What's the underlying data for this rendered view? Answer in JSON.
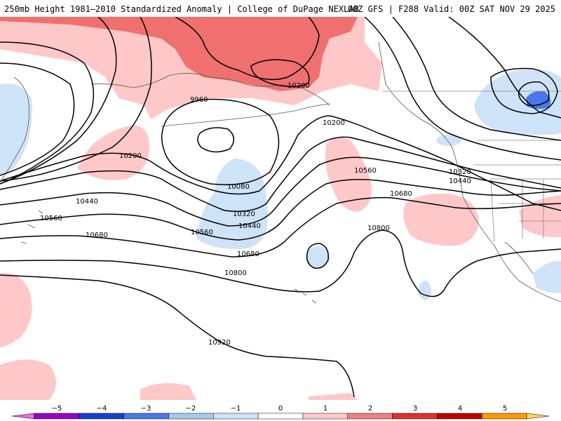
{
  "header": {
    "left": "250mb Height 1981–2010 Standardized Anomaly | College of DuPage NEXLAB",
    "right": "00Z GFS | F288 Valid: 00Z SAT NOV 29 2025"
  },
  "map": {
    "contour_labels": [
      "9960",
      "10080",
      "10200",
      "10200",
      "10200",
      "10320",
      "10320",
      "10440",
      "10440",
      "10440",
      "10560",
      "10560",
      "10560",
      "10680",
      "10680",
      "10680",
      "10800",
      "10800",
      "10920"
    ]
  },
  "colorbar": {
    "labels": [
      "−5",
      "−4",
      "−3",
      "−2",
      "−1",
      "0",
      "1",
      "2",
      "3",
      "4",
      "5"
    ],
    "colors": [
      "#e070e0",
      "#9a00c8",
      "#1a3fd0",
      "#4a78e8",
      "#a8c8f0",
      "#cfe3f8",
      "#ffffff",
      "#ffc8c8",
      "#f08080",
      "#e03030",
      "#c00000",
      "#ff9a00",
      "#ffd060"
    ]
  }
}
